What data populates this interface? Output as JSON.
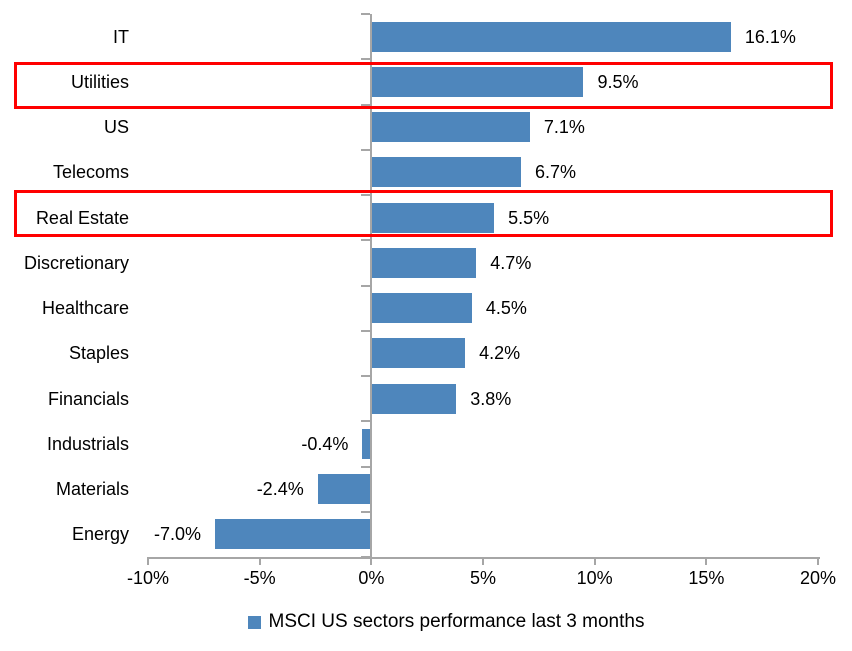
{
  "chart_data": {
    "type": "bar",
    "orientation": "horizontal",
    "categories": [
      "IT",
      "Utilities",
      "US",
      "Telecoms",
      "Real Estate",
      "Discretionary",
      "Healthcare",
      "Staples",
      "Financials",
      "Industrials",
      "Materials",
      "Energy"
    ],
    "values": [
      16.1,
      9.5,
      7.1,
      6.7,
      5.5,
      4.7,
      4.5,
      4.2,
      3.8,
      -0.4,
      -2.4,
      -7.0
    ],
    "value_labels": [
      "16.1%",
      "9.5%",
      "7.1%",
      "6.7%",
      "5.5%",
      "4.7%",
      "4.5%",
      "4.2%",
      "3.8%",
      "-0.4%",
      "-2.4%",
      "-7.0%"
    ],
    "x_tick_labels": [
      "-10%",
      "-5%",
      "0%",
      "5%",
      "10%",
      "15%",
      "20%"
    ],
    "x_tick_values": [
      -10,
      -5,
      0,
      5,
      10,
      15,
      20
    ],
    "xlim": [
      -10,
      20
    ],
    "grid": "off",
    "legend_position": "bottom-center",
    "series_name": "MSCI US sectors performance last 3 months",
    "highlighted_categories": [
      "Utilities",
      "Real Estate"
    ],
    "colors": {
      "bar": "#4E86BC",
      "highlight_box": "#FF0000",
      "axis": "#A6A6A6",
      "text": "#000000",
      "background": "#FFFFFF"
    }
  },
  "legend": {
    "label": "MSCI US sectors performance last 3 months"
  }
}
